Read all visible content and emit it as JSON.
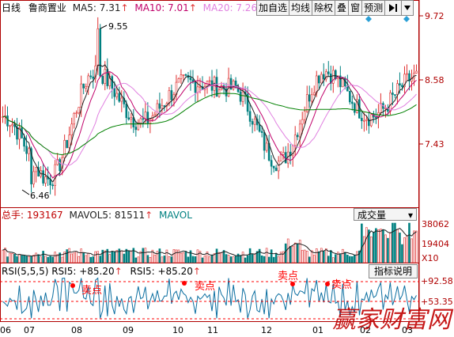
{
  "colors": {
    "up": "#e03030",
    "down": "#008080",
    "ma5": "#202020",
    "ma10": "#c0006a",
    "ma20": "#e080e0",
    "ma60": "#008000",
    "axis": "#b00000",
    "rsi": "#0a6ea0",
    "annotation": "#ff0000",
    "toolbar_btn": "#f4f4f4",
    "diamond": "#2a9fd6"
  },
  "header": {
    "period": "日线",
    "stock": "鲁商置业",
    "ma5": "MA5: 7.31",
    "ma10": "MA10: 7.01",
    "ma20": "MA20: 7.26",
    "ma60": "M",
    "up_arrow": "↑"
  },
  "toolbar": {
    "buttons": [
      "加自选",
      "均线",
      "除权",
      "叠",
      "窗",
      "预测"
    ],
    "nav_icon": "play-end-icon",
    "more_icon": "chevron-down-icon"
  },
  "price_panel": {
    "y_ticks": [
      "9.72",
      "8.58",
      "7.43"
    ],
    "high_label": "9.55",
    "low_label": "6.46"
  },
  "volume_panel": {
    "title": "总手: 193167",
    "mavol5": "MAVOL5: 81511",
    "mavol": "MAVOL",
    "dropdown": "成交量",
    "y_ticks": [
      "38062",
      "19404"
    ],
    "unit": "X10"
  },
  "rsi_panel": {
    "title": "RSI(5,5,5) RSI5: +85.20",
    "title2": "RSI5: +85.20",
    "button": "指标说明",
    "y_ticks": [
      "+92.58",
      "+53.35"
    ],
    "annotations": [
      "卖点",
      "卖点",
      "卖点",
      "卖点"
    ]
  },
  "x_axis": {
    "labels": [
      "06",
      "07",
      "08",
      "09",
      "10",
      "11",
      "12",
      "01",
      "02",
      "03"
    ]
  },
  "watermark": "赢家财富网",
  "chart_data": {
    "type": "candlestick",
    "title": "鲁商置业",
    "ylabel": "",
    "ylim": [
      6.2,
      9.8
    ],
    "grid": false,
    "marked_high": 9.55,
    "marked_low": 6.46,
    "close_points": [
      {
        "x": "06",
        "y": 7.8
      },
      {
        "x": "07",
        "y": 6.7
      },
      {
        "x": "08",
        "y": 8.6
      },
      {
        "x": "09",
        "y": 7.7
      },
      {
        "x": "10",
        "y": 8.4
      },
      {
        "x": "11",
        "y": 8.3
      },
      {
        "x": "12",
        "y": 7.0
      },
      {
        "x": "01",
        "y": 8.6
      },
      {
        "x": "02",
        "y": 7.8
      },
      {
        "x": "03",
        "y": 8.5
      }
    ],
    "rsi_sell_points": 4
  }
}
